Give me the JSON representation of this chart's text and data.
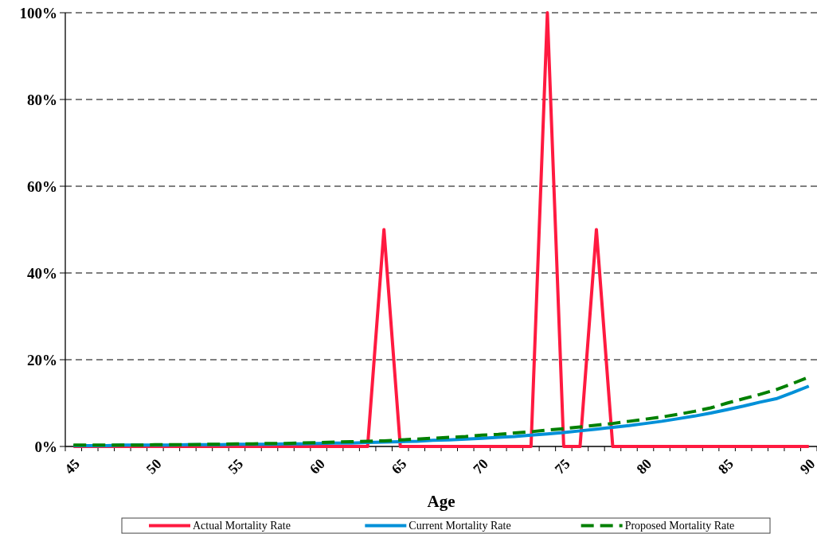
{
  "chart_data": {
    "type": "line",
    "xlabel": "Age",
    "categories": [
      "45",
      null,
      null,
      null,
      null,
      "50",
      null,
      null,
      null,
      null,
      "55",
      null,
      null,
      null,
      null,
      "60",
      null,
      null,
      null,
      null,
      "65",
      null,
      null,
      null,
      null,
      "70",
      null,
      null,
      null,
      null,
      "75",
      null,
      null,
      null,
      null,
      "80",
      null,
      null,
      null,
      null,
      "85",
      null,
      null,
      null,
      null,
      "90"
    ],
    "series": [
      {
        "name": "Actual Mortality Rate",
        "color": "#ff1a40",
        "line_style": "solid",
        "values": [
          0,
          0,
          0,
          0,
          0,
          0,
          0,
          0,
          0,
          0,
          0,
          0,
          0,
          0,
          0,
          0,
          0,
          0,
          0,
          50,
          0,
          0,
          0,
          0,
          0,
          0,
          0,
          0,
          0,
          100,
          0,
          0,
          50,
          0,
          0,
          0,
          0,
          0,
          0,
          0,
          0,
          0,
          0,
          0,
          0,
          0
        ]
      },
      {
        "name": "Current Mortality Rate",
        "color": "#0090d8",
        "line_style": "solid",
        "values": [
          0.2,
          0.2,
          0.2,
          0.3,
          0.3,
          0.3,
          0.3,
          0.4,
          0.4,
          0.4,
          0.5,
          0.5,
          0.5,
          0.6,
          0.6,
          0.7,
          0.8,
          0.8,
          0.9,
          1.0,
          1.1,
          1.2,
          1.4,
          1.5,
          1.7,
          1.9,
          2.1,
          2.3,
          2.6,
          2.9,
          3.2,
          3.6,
          4.0,
          4.4,
          4.8,
          5.3,
          5.8,
          6.4,
          7.0,
          7.7,
          8.5,
          9.3,
          10.2,
          11.0,
          12.4,
          13.9
        ]
      },
      {
        "name": "Proposed Mortality Rate",
        "color": "#008000",
        "line_style": "dashed",
        "values": [
          0.3,
          0.3,
          0.3,
          0.3,
          0.3,
          0.4,
          0.4,
          0.4,
          0.5,
          0.5,
          0.6,
          0.6,
          0.7,
          0.7,
          0.8,
          0.9,
          1.0,
          1.1,
          1.2,
          1.3,
          1.5,
          1.7,
          1.9,
          2.1,
          2.3,
          2.6,
          2.8,
          3.1,
          3.4,
          3.8,
          4.1,
          4.5,
          4.9,
          5.3,
          5.8,
          6.3,
          6.8,
          7.4,
          8.1,
          8.9,
          10.0,
          11.0,
          12.0,
          13.1,
          14.5,
          16.0
        ]
      }
    ],
    "ylim": [
      0,
      100
    ],
    "yticks": [
      {
        "value": 0,
        "label": "0%"
      },
      {
        "value": 20,
        "label": "20%"
      },
      {
        "value": 40,
        "label": "40%"
      },
      {
        "value": 60,
        "label": "60%"
      },
      {
        "value": 80,
        "label": "80%"
      },
      {
        "value": 100,
        "label": "100%"
      }
    ],
    "grid": "y",
    "legend": "bottom",
    "marker": "none"
  }
}
